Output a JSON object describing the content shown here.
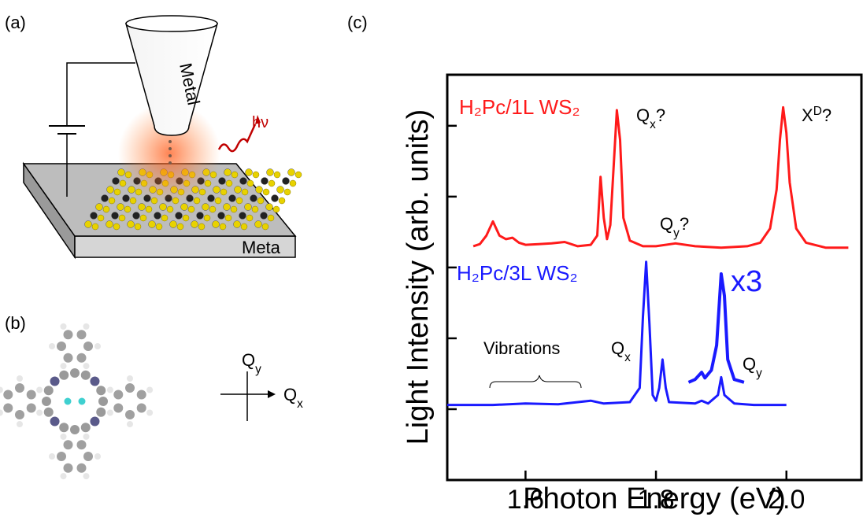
{
  "panels": {
    "a": {
      "label": "(a)",
      "tip": "Metal",
      "substrate": "Meta",
      "photon": "hν"
    },
    "b": {
      "label": "(b)",
      "axis_y": [
        {
          "text": "Q"
        },
        {
          "text": "y",
          "shift": "sub"
        }
      ],
      "axis_x": [
        {
          "text": "Q"
        },
        {
          "text": "x",
          "shift": "sub"
        }
      ]
    }
  },
  "chart_data": {
    "type": "line",
    "panel_label": "(c)",
    "x_label": "Photon Energy (eV)",
    "y_label": "Light Intensity (arb. units)",
    "xlim": [
      1.48,
      2.115
    ],
    "xticks": [
      1.6,
      1.8,
      {
        "value": 2,
        "label": "2.0"
      }
    ],
    "ylim": [
      0,
      5.72
    ],
    "yticks": [
      1,
      2,
      3,
      4,
      5
    ],
    "series": [
      {
        "name": "H₂Pc/1L WS₂",
        "color": "#ff1a1a",
        "x": [
          1.52,
          1.53,
          1.54,
          1.55,
          1.56,
          1.57,
          1.58,
          1.59,
          1.6,
          1.62,
          1.64,
          1.66,
          1.68,
          1.7,
          1.71,
          1.715,
          1.72,
          1.725,
          1.73,
          1.735,
          1.74,
          1.745,
          1.75,
          1.76,
          1.78,
          1.8,
          1.83,
          1.86,
          1.9,
          1.94,
          1.96,
          1.975,
          1.985,
          1.99,
          1.995,
          2.0,
          2.005,
          2.015,
          2.03,
          2.06,
          2.095
        ],
        "values": [
          3.3,
          3.33,
          3.45,
          3.65,
          3.45,
          3.4,
          3.42,
          3.35,
          3.32,
          3.33,
          3.34,
          3.36,
          3.3,
          3.32,
          3.45,
          4.28,
          3.7,
          3.4,
          3.6,
          4.4,
          5.22,
          4.8,
          3.7,
          3.38,
          3.3,
          3.3,
          3.34,
          3.3,
          3.28,
          3.3,
          3.35,
          3.55,
          4.1,
          4.8,
          5.26,
          4.9,
          4.2,
          3.55,
          3.35,
          3.28,
          3.28
        ]
      },
      {
        "name": "H₂Pc/3L WS₂",
        "color": "#1a1aff",
        "x": [
          1.48,
          1.55,
          1.6,
          1.65,
          1.7,
          1.72,
          1.76,
          1.775,
          1.78,
          1.785,
          1.79,
          1.795,
          1.8,
          1.805,
          1.81,
          1.815,
          1.82,
          1.86,
          1.87,
          1.88,
          1.895,
          1.9,
          1.905,
          1.92,
          1.95,
          2.0
        ],
        "values": [
          1.06,
          1.06,
          1.08,
          1.07,
          1.12,
          1.08,
          1.1,
          1.3,
          2.3,
          3.08,
          2.2,
          1.2,
          1.12,
          1.3,
          1.7,
          1.3,
          1.1,
          1.08,
          1.12,
          1.08,
          1.2,
          1.45,
          1.2,
          1.08,
          1.06,
          1.06
        ]
      },
      {
        "name": "x3",
        "color": "#1a1aff",
        "x": [
          1.85,
          1.86,
          1.87,
          1.875,
          1.885,
          1.893,
          1.9,
          1.905,
          1.91,
          1.92,
          1.935
        ],
        "values": [
          1.38,
          1.42,
          1.52,
          1.44,
          1.55,
          1.9,
          2.91,
          2.6,
          1.7,
          1.42,
          1.38
        ]
      }
    ],
    "annotations": [
      {
        "parts": [
          {
            "text": "Q"
          },
          {
            "text": "x",
            "shift": "sub"
          },
          {
            "text": "?"
          }
        ]
      },
      {
        "parts": [
          {
            "text": "X"
          },
          {
            "text": "D",
            "shift": "super"
          },
          {
            "text": "?"
          }
        ]
      },
      {
        "parts": [
          {
            "text": "Q"
          },
          {
            "text": "y",
            "shift": "sub"
          },
          {
            "text": "?"
          }
        ]
      },
      {
        "parts": [
          {
            "text": "Vibrations"
          }
        ]
      },
      {
        "parts": [
          {
            "text": "Q"
          },
          {
            "text": "x",
            "shift": "sub"
          }
        ]
      },
      {
        "parts": [
          {
            "text": "Q"
          },
          {
            "text": "y",
            "shift": "sub"
          }
        ]
      }
    ]
  }
}
